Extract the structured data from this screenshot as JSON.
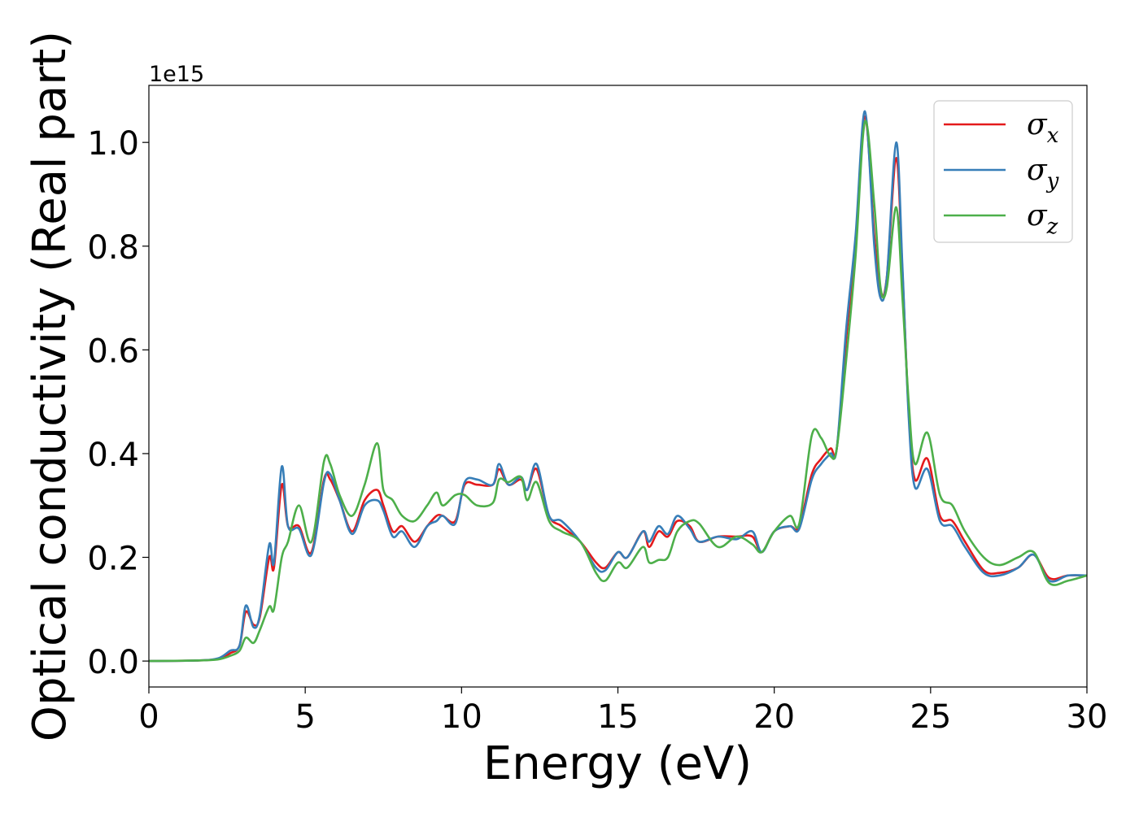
{
  "chart_data": {
    "type": "line",
    "title": "",
    "xlabel": "Energy (eV)",
    "ylabel": "Optical conductivity (Real part)",
    "y_offset_label": "1e15",
    "xlim": [
      0,
      30
    ],
    "ylim": [
      -0.05,
      1.11
    ],
    "x_ticks": [
      0,
      5,
      10,
      15,
      20,
      25,
      30
    ],
    "x_tick_labels": [
      "0",
      "5",
      "10",
      "15",
      "20",
      "25",
      "30"
    ],
    "y_ticks": [
      0.0,
      0.2,
      0.4,
      0.6,
      0.8,
      1.0
    ],
    "y_tick_labels": [
      "0.0",
      "0.2",
      "0.4",
      "0.6",
      "0.8",
      "1.0"
    ],
    "grid": false,
    "legend_position": "top-right",
    "series": [
      {
        "name": "σx",
        "legend_base": "σ",
        "legend_sub": "x",
        "color": "#e41a1c",
        "points": [
          [
            0,
            0
          ],
          [
            1.5,
            0.001
          ],
          [
            2.2,
            0.004
          ],
          [
            2.6,
            0.015
          ],
          [
            2.9,
            0.03
          ],
          [
            3.1,
            0.095
          ],
          [
            3.35,
            0.07
          ],
          [
            3.55,
            0.085
          ],
          [
            3.85,
            0.2
          ],
          [
            4.0,
            0.18
          ],
          [
            4.25,
            0.34
          ],
          [
            4.45,
            0.26
          ],
          [
            4.8,
            0.26
          ],
          [
            5.2,
            0.21
          ],
          [
            5.6,
            0.35
          ],
          [
            5.8,
            0.35
          ],
          [
            6.1,
            0.31
          ],
          [
            6.5,
            0.25
          ],
          [
            6.9,
            0.31
          ],
          [
            7.3,
            0.33
          ],
          [
            7.5,
            0.3
          ],
          [
            7.8,
            0.25
          ],
          [
            8.1,
            0.26
          ],
          [
            8.5,
            0.23
          ],
          [
            8.9,
            0.26
          ],
          [
            9.2,
            0.28
          ],
          [
            9.4,
            0.28
          ],
          [
            9.8,
            0.27
          ],
          [
            10.1,
            0.34
          ],
          [
            10.5,
            0.34
          ],
          [
            11.0,
            0.34
          ],
          [
            11.2,
            0.37
          ],
          [
            11.5,
            0.34
          ],
          [
            11.9,
            0.35
          ],
          [
            12.1,
            0.33
          ],
          [
            12.4,
            0.37
          ],
          [
            12.8,
            0.28
          ],
          [
            13.2,
            0.26
          ],
          [
            13.8,
            0.23
          ],
          [
            14.3,
            0.19
          ],
          [
            14.6,
            0.18
          ],
          [
            15.0,
            0.21
          ],
          [
            15.3,
            0.2
          ],
          [
            15.8,
            0.25
          ],
          [
            16.0,
            0.22
          ],
          [
            16.3,
            0.25
          ],
          [
            16.6,
            0.24
          ],
          [
            16.9,
            0.27
          ],
          [
            17.3,
            0.26
          ],
          [
            17.6,
            0.23
          ],
          [
            18.2,
            0.24
          ],
          [
            18.8,
            0.24
          ],
          [
            19.3,
            0.24
          ],
          [
            19.6,
            0.21
          ],
          [
            20.0,
            0.25
          ],
          [
            20.5,
            0.26
          ],
          [
            20.8,
            0.26
          ],
          [
            21.2,
            0.36
          ],
          [
            21.5,
            0.39
          ],
          [
            21.8,
            0.41
          ],
          [
            22.0,
            0.41
          ],
          [
            22.3,
            0.62
          ],
          [
            22.6,
            0.81
          ],
          [
            22.9,
            1.05
          ],
          [
            23.2,
            0.82
          ],
          [
            23.4,
            0.71
          ],
          [
            23.6,
            0.74
          ],
          [
            23.9,
            0.97
          ],
          [
            24.1,
            0.75
          ],
          [
            24.3,
            0.48
          ],
          [
            24.5,
            0.35
          ],
          [
            24.9,
            0.39
          ],
          [
            25.3,
            0.28
          ],
          [
            25.7,
            0.27
          ],
          [
            26.1,
            0.23
          ],
          [
            26.7,
            0.175
          ],
          [
            27.2,
            0.17
          ],
          [
            27.8,
            0.18
          ],
          [
            28.3,
            0.205
          ],
          [
            28.8,
            0.16
          ],
          [
            29.4,
            0.165
          ],
          [
            30,
            0.165
          ]
        ]
      },
      {
        "name": "σy",
        "legend_base": "σ",
        "legend_sub": "y",
        "color": "#377eb8",
        "points": [
          [
            0,
            0
          ],
          [
            1.5,
            0.001
          ],
          [
            2.2,
            0.005
          ],
          [
            2.6,
            0.02
          ],
          [
            2.9,
            0.03
          ],
          [
            3.1,
            0.107
          ],
          [
            3.35,
            0.065
          ],
          [
            3.55,
            0.09
          ],
          [
            3.85,
            0.225
          ],
          [
            4.0,
            0.19
          ],
          [
            4.25,
            0.375
          ],
          [
            4.45,
            0.26
          ],
          [
            4.8,
            0.255
          ],
          [
            5.2,
            0.205
          ],
          [
            5.6,
            0.345
          ],
          [
            5.8,
            0.36
          ],
          [
            6.1,
            0.31
          ],
          [
            6.5,
            0.245
          ],
          [
            6.9,
            0.3
          ],
          [
            7.3,
            0.31
          ],
          [
            7.5,
            0.29
          ],
          [
            7.8,
            0.24
          ],
          [
            8.1,
            0.25
          ],
          [
            8.5,
            0.22
          ],
          [
            8.9,
            0.26
          ],
          [
            9.2,
            0.27
          ],
          [
            9.4,
            0.28
          ],
          [
            9.8,
            0.265
          ],
          [
            10.1,
            0.345
          ],
          [
            10.5,
            0.35
          ],
          [
            11.0,
            0.34
          ],
          [
            11.2,
            0.38
          ],
          [
            11.5,
            0.34
          ],
          [
            11.9,
            0.355
          ],
          [
            12.1,
            0.33
          ],
          [
            12.4,
            0.38
          ],
          [
            12.8,
            0.28
          ],
          [
            13.2,
            0.27
          ],
          [
            13.8,
            0.23
          ],
          [
            14.3,
            0.18
          ],
          [
            14.6,
            0.175
          ],
          [
            15.0,
            0.21
          ],
          [
            15.3,
            0.2
          ],
          [
            15.8,
            0.25
          ],
          [
            16.0,
            0.23
          ],
          [
            16.3,
            0.26
          ],
          [
            16.6,
            0.245
          ],
          [
            16.9,
            0.28
          ],
          [
            17.3,
            0.255
          ],
          [
            17.6,
            0.23
          ],
          [
            18.2,
            0.24
          ],
          [
            18.8,
            0.235
          ],
          [
            19.3,
            0.25
          ],
          [
            19.6,
            0.21
          ],
          [
            20.0,
            0.25
          ],
          [
            20.5,
            0.26
          ],
          [
            20.8,
            0.255
          ],
          [
            21.2,
            0.35
          ],
          [
            21.5,
            0.38
          ],
          [
            21.8,
            0.4
          ],
          [
            22.0,
            0.41
          ],
          [
            22.3,
            0.64
          ],
          [
            22.6,
            0.82
          ],
          [
            22.9,
            1.06
          ],
          [
            23.2,
            0.8
          ],
          [
            23.4,
            0.7
          ],
          [
            23.6,
            0.74
          ],
          [
            23.9,
            1.0
          ],
          [
            24.1,
            0.76
          ],
          [
            24.3,
            0.47
          ],
          [
            24.5,
            0.335
          ],
          [
            24.9,
            0.37
          ],
          [
            25.3,
            0.27
          ],
          [
            25.7,
            0.26
          ],
          [
            26.1,
            0.22
          ],
          [
            26.7,
            0.17
          ],
          [
            27.2,
            0.165
          ],
          [
            27.8,
            0.18
          ],
          [
            28.3,
            0.205
          ],
          [
            28.8,
            0.155
          ],
          [
            29.4,
            0.165
          ],
          [
            30,
            0.165
          ]
        ]
      },
      {
        "name": "σz",
        "legend_base": "σ",
        "legend_sub": "z",
        "color": "#4daf4a",
        "points": [
          [
            0,
            0
          ],
          [
            1.5,
            0.001
          ],
          [
            2.2,
            0.003
          ],
          [
            2.6,
            0.01
          ],
          [
            2.9,
            0.02
          ],
          [
            3.1,
            0.045
          ],
          [
            3.35,
            0.035
          ],
          [
            3.55,
            0.06
          ],
          [
            3.85,
            0.105
          ],
          [
            4.0,
            0.1
          ],
          [
            4.25,
            0.2
          ],
          [
            4.45,
            0.23
          ],
          [
            4.8,
            0.3
          ],
          [
            5.2,
            0.23
          ],
          [
            5.6,
            0.385
          ],
          [
            5.8,
            0.38
          ],
          [
            6.1,
            0.32
          ],
          [
            6.5,
            0.28
          ],
          [
            6.9,
            0.34
          ],
          [
            7.3,
            0.42
          ],
          [
            7.5,
            0.33
          ],
          [
            7.8,
            0.31
          ],
          [
            8.1,
            0.28
          ],
          [
            8.5,
            0.27
          ],
          [
            8.9,
            0.3
          ],
          [
            9.2,
            0.325
          ],
          [
            9.4,
            0.3
          ],
          [
            9.8,
            0.32
          ],
          [
            10.1,
            0.32
          ],
          [
            10.5,
            0.3
          ],
          [
            11.0,
            0.305
          ],
          [
            11.2,
            0.35
          ],
          [
            11.5,
            0.345
          ],
          [
            11.9,
            0.355
          ],
          [
            12.1,
            0.31
          ],
          [
            12.4,
            0.345
          ],
          [
            12.8,
            0.27
          ],
          [
            13.2,
            0.25
          ],
          [
            13.8,
            0.23
          ],
          [
            14.3,
            0.17
          ],
          [
            14.6,
            0.155
          ],
          [
            15.0,
            0.19
          ],
          [
            15.3,
            0.18
          ],
          [
            15.8,
            0.22
          ],
          [
            16.0,
            0.19
          ],
          [
            16.3,
            0.195
          ],
          [
            16.6,
            0.2
          ],
          [
            16.9,
            0.25
          ],
          [
            17.3,
            0.27
          ],
          [
            17.6,
            0.265
          ],
          [
            18.2,
            0.22
          ],
          [
            18.8,
            0.24
          ],
          [
            19.3,
            0.225
          ],
          [
            19.6,
            0.21
          ],
          [
            20.0,
            0.25
          ],
          [
            20.5,
            0.28
          ],
          [
            20.8,
            0.265
          ],
          [
            21.2,
            0.435
          ],
          [
            21.5,
            0.43
          ],
          [
            21.8,
            0.395
          ],
          [
            22.0,
            0.41
          ],
          [
            22.3,
            0.58
          ],
          [
            22.6,
            0.78
          ],
          [
            22.9,
            1.04
          ],
          [
            23.2,
            0.88
          ],
          [
            23.4,
            0.72
          ],
          [
            23.6,
            0.72
          ],
          [
            23.9,
            0.875
          ],
          [
            24.1,
            0.7
          ],
          [
            24.3,
            0.5
          ],
          [
            24.5,
            0.38
          ],
          [
            24.9,
            0.44
          ],
          [
            25.3,
            0.32
          ],
          [
            25.7,
            0.3
          ],
          [
            26.1,
            0.25
          ],
          [
            26.7,
            0.2
          ],
          [
            27.2,
            0.185
          ],
          [
            27.8,
            0.2
          ],
          [
            28.3,
            0.21
          ],
          [
            28.8,
            0.15
          ],
          [
            29.4,
            0.155
          ],
          [
            30,
            0.165
          ]
        ]
      }
    ]
  }
}
